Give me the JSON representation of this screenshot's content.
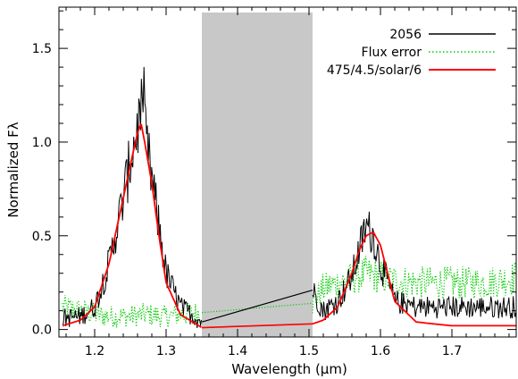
{
  "chart_data": {
    "type": "line",
    "xlabel": "Wavelength (μm)",
    "ylabel": "Normalized Fλ",
    "xlim": [
      1.15,
      1.79
    ],
    "ylim": [
      -0.04,
      1.72
    ],
    "xticks": [
      1.2,
      1.3,
      1.4,
      1.5,
      1.6,
      1.7
    ],
    "xtick_labels": [
      "1.2",
      "1.3",
      "1.4",
      "1.5",
      "1.6",
      "1.7"
    ],
    "yticks": [
      0.0,
      0.5,
      1.0,
      1.5
    ],
    "ytick_labels": [
      "0.0",
      "0.5",
      "1.0",
      "1.5"
    ],
    "grid": false,
    "legend_position": "top-right",
    "masked_region": {
      "x_start": 1.35,
      "x_end": 1.505,
      "color": "#c8c8c8"
    },
    "series": [
      {
        "name": "2056",
        "style": "solid",
        "color": "#000000",
        "noise": 0.045,
        "gap_line": [
          [
            1.35,
            0.04
          ],
          [
            1.505,
            0.21
          ]
        ],
        "x": [
          1.155,
          1.18,
          1.2,
          1.22,
          1.24,
          1.25,
          1.26,
          1.265,
          1.27,
          1.28,
          1.29,
          1.3,
          1.32,
          1.35,
          1.505,
          1.52,
          1.54,
          1.56,
          1.57,
          1.58,
          1.59,
          1.6,
          1.62,
          1.65,
          1.7,
          1.75,
          1.79
        ],
        "y": [
          0.06,
          0.07,
          0.12,
          0.35,
          0.7,
          0.9,
          1.08,
          1.15,
          1.05,
          0.8,
          0.55,
          0.3,
          0.12,
          0.04,
          0.21,
          0.1,
          0.15,
          0.28,
          0.42,
          0.55,
          0.5,
          0.35,
          0.15,
          0.12,
          0.12,
          0.12,
          0.12
        ]
      },
      {
        "name": "Flux error",
        "style": "dotted",
        "color": "#00cc00",
        "noise": 0.05,
        "gap_line": [
          [
            1.35,
            0.09
          ],
          [
            1.505,
            0.14
          ]
        ],
        "x": [
          1.155,
          1.18,
          1.2,
          1.22,
          1.25,
          1.27,
          1.3,
          1.32,
          1.35,
          1.505,
          1.52,
          1.55,
          1.58,
          1.6,
          1.62,
          1.65,
          1.7,
          1.75,
          1.79
        ],
        "y": [
          0.12,
          0.1,
          0.08,
          0.07,
          0.07,
          0.08,
          0.07,
          0.08,
          0.09,
          0.14,
          0.22,
          0.26,
          0.3,
          0.28,
          0.26,
          0.25,
          0.25,
          0.25,
          0.28
        ]
      },
      {
        "name": "475/4.5/solar/6",
        "style": "solid",
        "color": "#ff0000",
        "noise": 0.0,
        "gap_line": [
          [
            1.35,
            0.01
          ],
          [
            1.505,
            0.03
          ]
        ],
        "x": [
          1.155,
          1.18,
          1.2,
          1.22,
          1.24,
          1.25,
          1.26,
          1.265,
          1.27,
          1.28,
          1.29,
          1.3,
          1.32,
          1.35,
          1.505,
          1.52,
          1.54,
          1.56,
          1.57,
          1.58,
          1.59,
          1.6,
          1.61,
          1.62,
          1.65,
          1.7,
          1.75,
          1.79
        ],
        "y": [
          0.02,
          0.05,
          0.12,
          0.35,
          0.7,
          0.88,
          1.05,
          1.1,
          1.0,
          0.78,
          0.5,
          0.25,
          0.08,
          0.01,
          0.03,
          0.05,
          0.12,
          0.3,
          0.42,
          0.5,
          0.52,
          0.45,
          0.3,
          0.15,
          0.04,
          0.02,
          0.02,
          0.02
        ]
      }
    ]
  }
}
